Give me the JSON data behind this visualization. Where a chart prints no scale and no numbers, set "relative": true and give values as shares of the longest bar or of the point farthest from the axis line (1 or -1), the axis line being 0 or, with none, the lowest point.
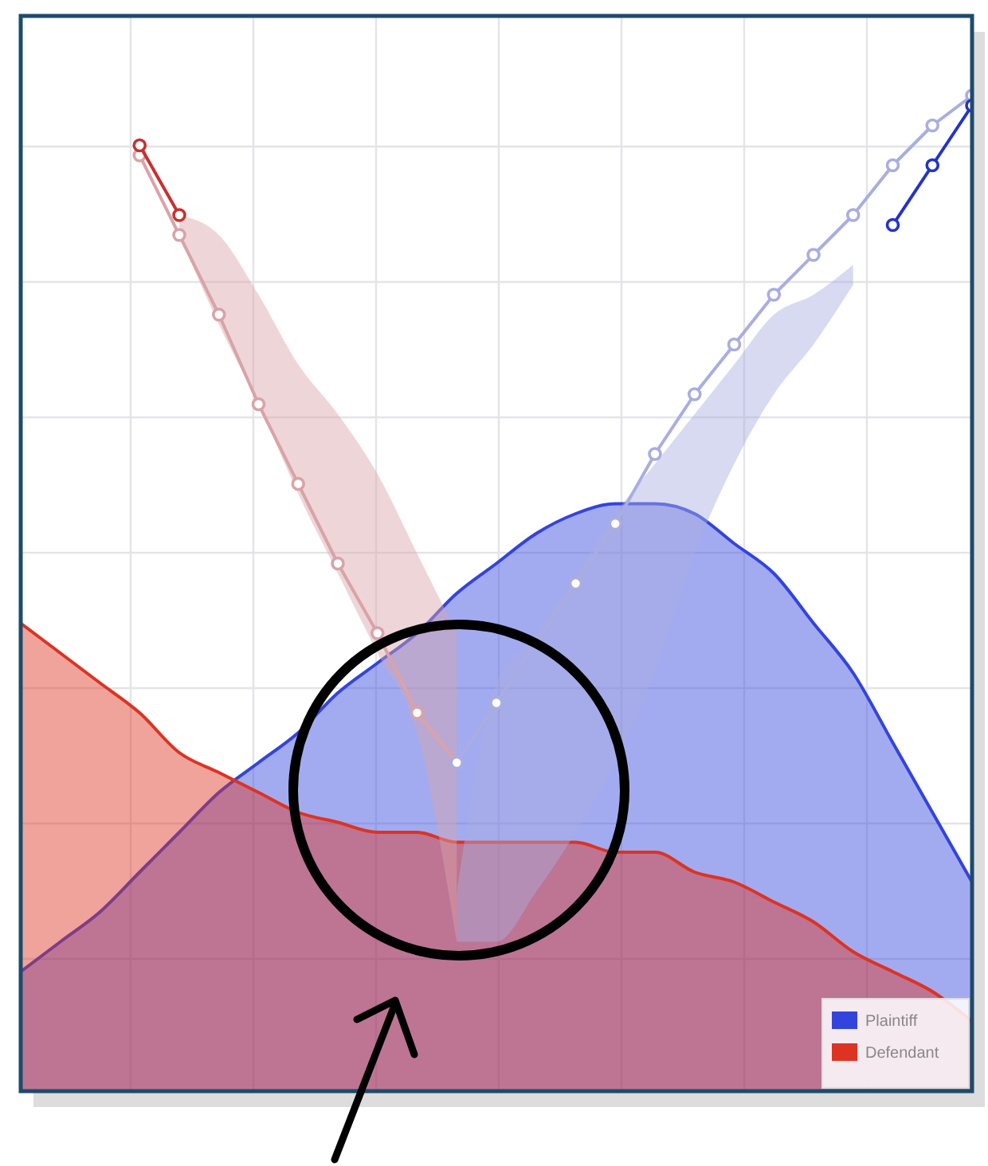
{
  "chart_data": {
    "type": "line",
    "relative": true,
    "grid": true,
    "legend": "bottom right",
    "categories": [
      null,
      null,
      null,
      null,
      null,
      null,
      null,
      null,
      null,
      null,
      null,
      null,
      null,
      null,
      null,
      null,
      null,
      null,
      null,
      null,
      null,
      null,
      null,
      null,
      null
    ],
    "series": [
      {
        "name": "Plaintiff",
        "type": "area",
        "color": "#3344dd",
        "values": [
          0.12,
          0.15,
          0.18,
          0.22,
          0.26,
          0.3,
          0.33,
          0.36,
          0.4,
          0.43,
          0.46,
          0.5,
          0.53,
          0.56,
          0.58,
          0.59,
          0.59,
          0.58,
          0.55,
          0.52,
          0.47,
          0.42,
          0.35,
          0.28,
          0.21
        ]
      },
      {
        "name": "Defendant",
        "type": "area",
        "color": "#dd3322",
        "values": [
          0.47,
          0.44,
          0.41,
          0.38,
          0.34,
          0.32,
          0.3,
          0.28,
          0.27,
          0.26,
          0.26,
          0.25,
          0.25,
          0.25,
          0.25,
          0.24,
          0.24,
          0.22,
          0.21,
          0.19,
          0.17,
          0.14,
          0.12,
          0.1,
          0.07
        ]
      },
      {
        "color": "#d9a3a8",
        "marker": "circle",
        "values": [
          null,
          null,
          null,
          0.94,
          0.86,
          0.78,
          0.69,
          0.61,
          0.53,
          0.46,
          0.38,
          0.33,
          null,
          null,
          null,
          null,
          null,
          null,
          null,
          null,
          null,
          null,
          null,
          null,
          null
        ],
        "lower": [
          null,
          null,
          null,
          null,
          0.86,
          0.77,
          0.69,
          0.6,
          0.52,
          0.44,
          0.36,
          0.15,
          null,
          null,
          null,
          null,
          null,
          null,
          null,
          null,
          null,
          null,
          null,
          null,
          null
        ],
        "upper": [
          null,
          null,
          null,
          null,
          0.88,
          0.86,
          0.8,
          0.73,
          0.68,
          0.62,
          0.54,
          0.46,
          null,
          null,
          null,
          null,
          null,
          null,
          null,
          null,
          null,
          null,
          null,
          null,
          null
        ]
      },
      {
        "color": "#a9ade0",
        "marker": "circle",
        "values": [
          null,
          null,
          null,
          null,
          null,
          null,
          null,
          null,
          null,
          null,
          null,
          0.33,
          0.39,
          0.45,
          0.51,
          0.57,
          0.64,
          0.7,
          0.75,
          0.8,
          0.84,
          0.88,
          0.93,
          0.97,
          1.0
        ],
        "lower": [
          null,
          null,
          null,
          null,
          null,
          null,
          null,
          null,
          null,
          null,
          null,
          0.15,
          0.15,
          0.2,
          0.26,
          0.33,
          0.42,
          0.54,
          0.63,
          0.7,
          0.75,
          0.81,
          null,
          null,
          null
        ],
        "upper": [
          null,
          null,
          null,
          null,
          null,
          null,
          null,
          null,
          null,
          null,
          null,
          0.2,
          0.41,
          0.46,
          0.52,
          0.58,
          0.63,
          0.68,
          0.73,
          0.78,
          0.8,
          0.83,
          null,
          null,
          null
        ]
      },
      {
        "color": "#c83030",
        "marker": "circle",
        "values": [
          null,
          null,
          null,
          0.95,
          0.88,
          null,
          null,
          null,
          null,
          null,
          null,
          null,
          null,
          null,
          null,
          null,
          null,
          null,
          null,
          null,
          null,
          null,
          null,
          null,
          null
        ]
      },
      {
        "color": "#2233cc",
        "marker": "circle",
        "values": [
          null,
          null,
          null,
          null,
          null,
          null,
          null,
          null,
          null,
          null,
          null,
          null,
          null,
          null,
          null,
          null,
          null,
          null,
          null,
          null,
          null,
          null,
          0.87,
          0.93,
          0.99
        ]
      }
    ]
  }
}
